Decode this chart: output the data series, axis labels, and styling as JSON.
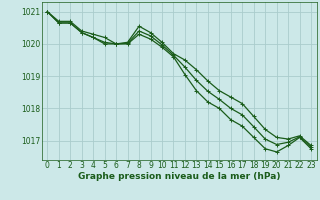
{
  "background_color": "#cce8e8",
  "grid_color": "#aacccc",
  "line_color_dark": "#1a5c1a",
  "xlabel": "Graphe pression niveau de la mer (hPa)",
  "xlabel_fontsize": 6.5,
  "tick_fontsize": 5.5,
  "ylim": [
    1016.4,
    1021.3
  ],
  "xlim": [
    -0.5,
    23.5
  ],
  "yticks": [
    1017,
    1018,
    1019,
    1020,
    1021
  ],
  "xticks": [
    0,
    1,
    2,
    3,
    4,
    5,
    6,
    7,
    8,
    9,
    10,
    11,
    12,
    13,
    14,
    15,
    16,
    17,
    18,
    19,
    20,
    21,
    22,
    23
  ],
  "series": [
    [
      1021.0,
      1020.7,
      1020.7,
      1020.4,
      1020.3,
      1020.2,
      1020.0,
      1020.05,
      1020.55,
      1020.35,
      1020.05,
      1019.7,
      1019.5,
      1019.2,
      1018.85,
      1018.55,
      1018.35,
      1018.15,
      1017.75,
      1017.35,
      1017.1,
      1017.05,
      1017.15,
      1016.85
    ],
    [
      1021.0,
      1020.65,
      1020.65,
      1020.35,
      1020.2,
      1020.0,
      1020.0,
      1020.0,
      1020.3,
      1020.15,
      1019.9,
      1019.6,
      1019.05,
      1018.55,
      1018.2,
      1018.0,
      1017.65,
      1017.45,
      1017.1,
      1016.75,
      1016.65,
      1016.85,
      1017.1,
      1016.75
    ],
    [
      1021.0,
      1020.65,
      1020.65,
      1020.35,
      1020.2,
      1020.05,
      1020.0,
      1020.02,
      1020.4,
      1020.25,
      1019.97,
      1019.65,
      1019.28,
      1018.87,
      1018.53,
      1018.28,
      1018.0,
      1017.8,
      1017.43,
      1017.05,
      1016.88,
      1016.95,
      1017.12,
      1016.8
    ]
  ]
}
